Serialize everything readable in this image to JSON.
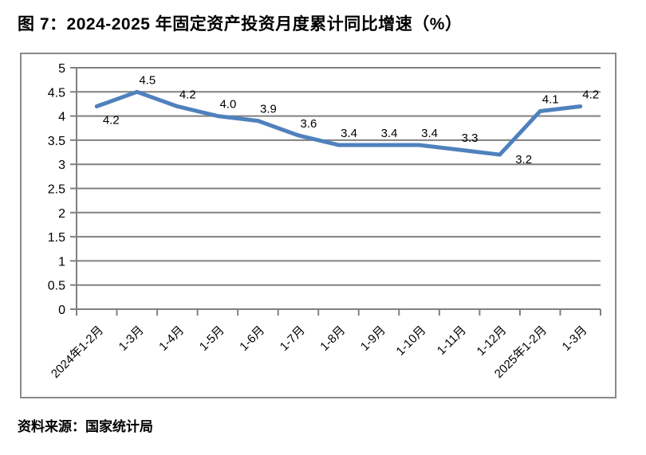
{
  "page": {
    "title": "图 7：2024-2025 年固定资产投资月度累计同比增速（%）",
    "source": "资料来源：国家统计局"
  },
  "chart_data": {
    "type": "line",
    "title": "2024-2025 年固定资产投资月度累计同比增速（%）",
    "categories": [
      "2024年1-2月",
      "1-3月",
      "1-4月",
      "1-5月",
      "1-6月",
      "1-7月",
      "1-8月",
      "1-9月",
      "1-10月",
      "1-11月",
      "1-12月",
      "2025年1-2月",
      "1-3月"
    ],
    "values": [
      4.2,
      4.5,
      4.2,
      4.0,
      3.9,
      3.6,
      3.4,
      3.4,
      3.4,
      3.3,
      3.2,
      4.1,
      4.2
    ],
    "data_labels": [
      "4.2",
      "4.5",
      "4.2",
      "4.0",
      "3.9",
      "3.6",
      "3.4",
      "3.4",
      "3.4",
      "3.3",
      "3.2",
      "4.1",
      "4.2"
    ],
    "label_placement": [
      "below",
      "above",
      "above",
      "above",
      "above",
      "above",
      "above",
      "above",
      "above",
      "above",
      "below-right",
      "above",
      "above"
    ],
    "xlabel": "",
    "ylabel": "",
    "ylim": [
      0,
      5
    ],
    "ytick_step": 0.5,
    "yticks": [
      "0",
      "0.5",
      "1",
      "1.5",
      "2",
      "2.5",
      "3",
      "3.5",
      "4",
      "4.5",
      "5"
    ],
    "grid": "horizontal",
    "legend": "none",
    "colors": {
      "line": "#4F81BD",
      "grid": "#808080",
      "axis": "#808080",
      "text": "#000000",
      "frame": "#8a8a8a"
    }
  }
}
